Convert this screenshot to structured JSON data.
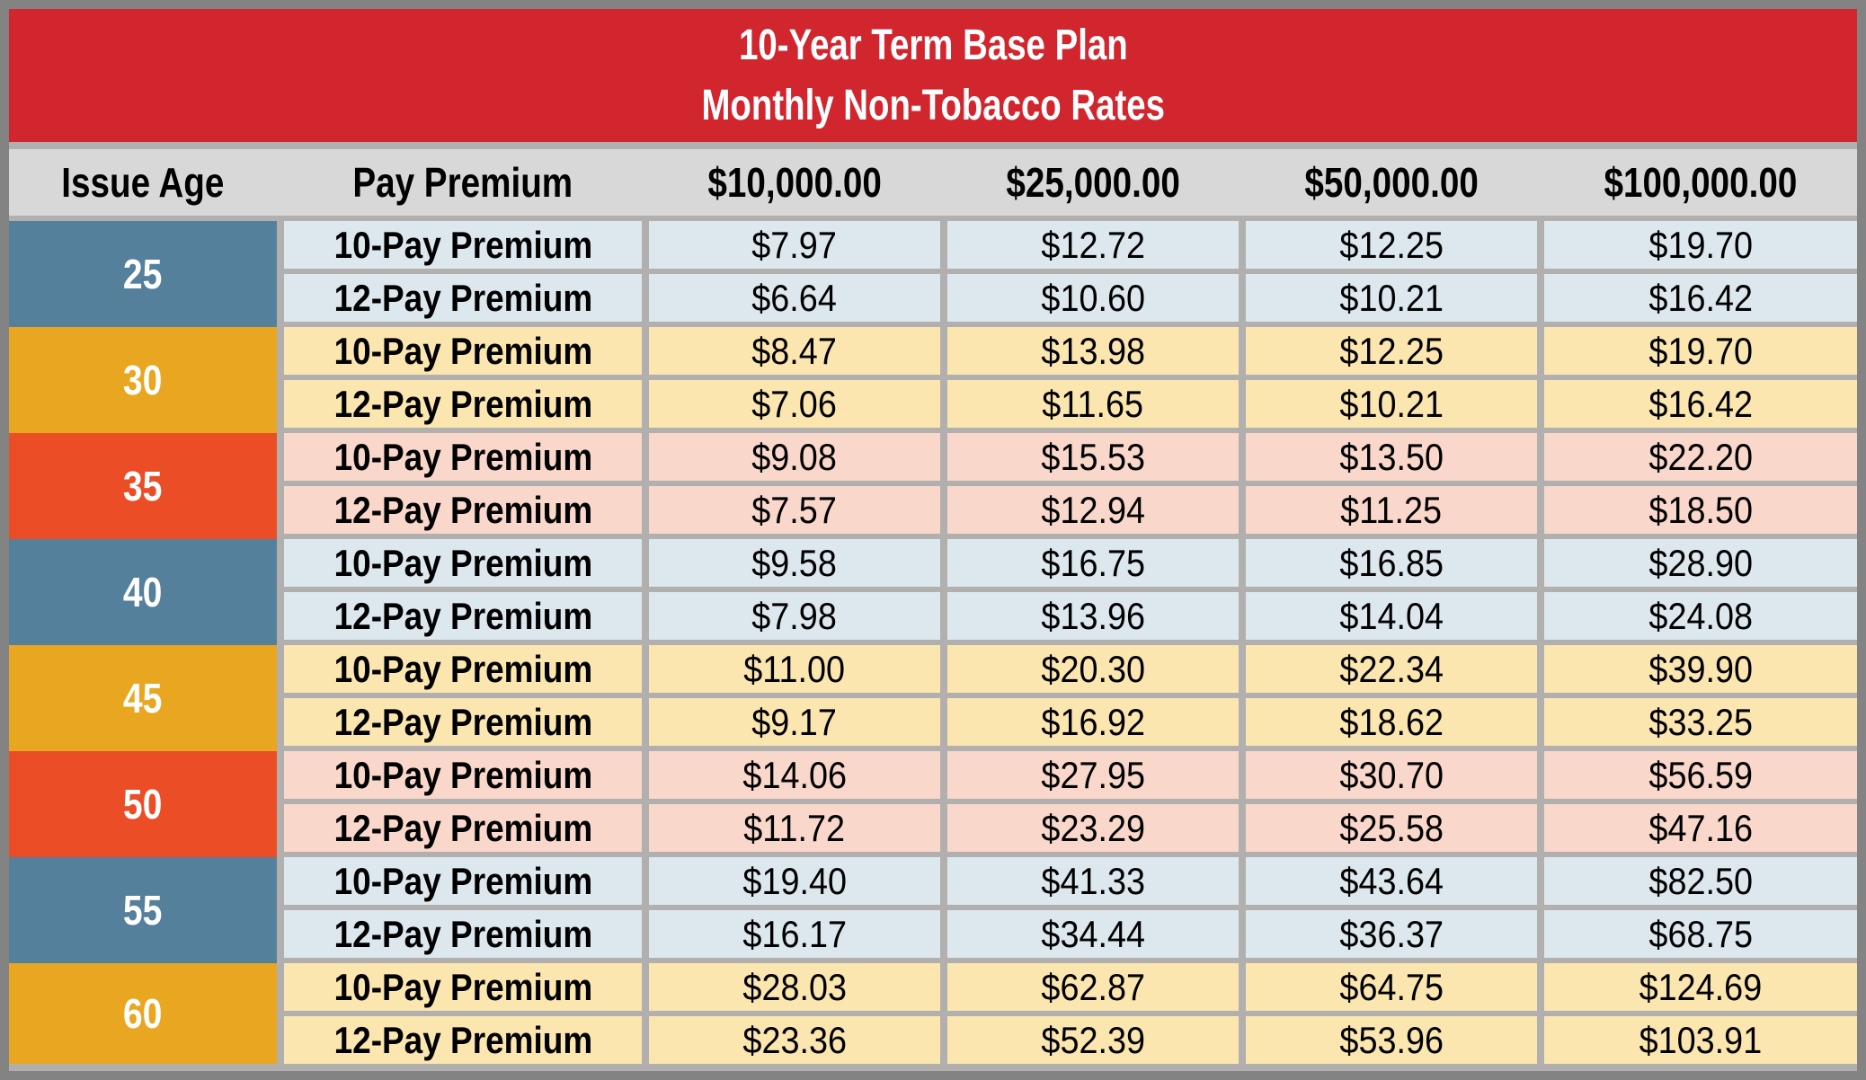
{
  "title": {
    "line1": "10-Year Term Base Plan",
    "line2": "Monthly Non-Tobacco Rates"
  },
  "header": {
    "columns": [
      "Issue Age",
      "Pay Premium",
      "$10,000.00",
      "$25,000.00",
      "$50,000.00",
      "$100,000.00"
    ]
  },
  "colors": {
    "title_band": "#d2262f",
    "header_bg": "#d8d8d8",
    "frame_border": "#838383",
    "cell_gap": "#b2afaf",
    "age_blue": "#54809b",
    "age_amber": "#e9a620",
    "age_red": "#eb4e26",
    "row_blue": "#dde8ee",
    "row_amber": "#fce6b0",
    "row_red": "#f9d7ca",
    "text_dark": "#000000",
    "text_light": "#ffffff"
  },
  "table": {
    "age_groups": [
      {
        "age": "25",
        "theme": "blue",
        "rows": [
          {
            "label": "10-Pay Premium",
            "values": [
              "$7.97",
              "$12.72",
              "$12.25",
              "$19.70"
            ]
          },
          {
            "label": "12-Pay Premium",
            "values": [
              "$6.64",
              "$10.60",
              "$10.21",
              "$16.42"
            ]
          }
        ]
      },
      {
        "age": "30",
        "theme": "amber",
        "rows": [
          {
            "label": "10-Pay Premium",
            "values": [
              "$8.47",
              "$13.98",
              "$12.25",
              "$19.70"
            ]
          },
          {
            "label": "12-Pay Premium",
            "values": [
              "$7.06",
              "$11.65",
              "$10.21",
              "$16.42"
            ]
          }
        ]
      },
      {
        "age": "35",
        "theme": "red",
        "rows": [
          {
            "label": "10-Pay Premium",
            "values": [
              "$9.08",
              "$15.53",
              "$13.50",
              "$22.20"
            ]
          },
          {
            "label": "12-Pay Premium",
            "values": [
              "$7.57",
              "$12.94",
              "$11.25",
              "$18.50"
            ]
          }
        ]
      },
      {
        "age": "40",
        "theme": "blue",
        "rows": [
          {
            "label": "10-Pay Premium",
            "values": [
              "$9.58",
              "$16.75",
              "$16.85",
              "$28.90"
            ]
          },
          {
            "label": "12-Pay Premium",
            "values": [
              "$7.98",
              "$13.96",
              "$14.04",
              "$24.08"
            ]
          }
        ]
      },
      {
        "age": "45",
        "theme": "amber",
        "rows": [
          {
            "label": "10-Pay Premium",
            "values": [
              "$11.00",
              "$20.30",
              "$22.34",
              "$39.90"
            ]
          },
          {
            "label": "12-Pay Premium",
            "values": [
              "$9.17",
              "$16.92",
              "$18.62",
              "$33.25"
            ]
          }
        ]
      },
      {
        "age": "50",
        "theme": "red",
        "rows": [
          {
            "label": "10-Pay Premium",
            "values": [
              "$14.06",
              "$27.95",
              "$30.70",
              "$56.59"
            ]
          },
          {
            "label": "12-Pay Premium",
            "values": [
              "$11.72",
              "$23.29",
              "$25.58",
              "$47.16"
            ]
          }
        ]
      },
      {
        "age": "55",
        "theme": "blue",
        "rows": [
          {
            "label": "10-Pay Premium",
            "values": [
              "$19.40",
              "$41.33",
              "$43.64",
              "$82.50"
            ]
          },
          {
            "label": "12-Pay Premium",
            "values": [
              "$16.17",
              "$34.44",
              "$36.37",
              "$68.75"
            ]
          }
        ]
      },
      {
        "age": "60",
        "theme": "amber",
        "rows": [
          {
            "label": "10-Pay Premium",
            "values": [
              "$28.03",
              "$62.87",
              "$64.75",
              "$124.69"
            ]
          },
          {
            "label": "12-Pay Premium",
            "values": [
              "$23.36",
              "$52.39",
              "$53.96",
              "$103.91"
            ]
          }
        ]
      }
    ]
  },
  "chart_data": {
    "type": "table",
    "title": "10-Year Term Base Plan",
    "subtitle": "Monthly Non-Tobacco Rates",
    "columns": [
      "Issue Age",
      "Pay Premium",
      "$10,000.00",
      "$25,000.00",
      "$50,000.00",
      "$100,000.00"
    ],
    "rows": [
      [
        25,
        "10-Pay Premium",
        7.97,
        12.72,
        12.25,
        19.7
      ],
      [
        25,
        "12-Pay Premium",
        6.64,
        10.6,
        10.21,
        16.42
      ],
      [
        30,
        "10-Pay Premium",
        8.47,
        13.98,
        12.25,
        19.7
      ],
      [
        30,
        "12-Pay Premium",
        7.06,
        11.65,
        10.21,
        16.42
      ],
      [
        35,
        "10-Pay Premium",
        9.08,
        15.53,
        13.5,
        22.2
      ],
      [
        35,
        "12-Pay Premium",
        7.57,
        12.94,
        11.25,
        18.5
      ],
      [
        40,
        "10-Pay Premium",
        9.58,
        16.75,
        16.85,
        28.9
      ],
      [
        40,
        "12-Pay Premium",
        7.98,
        13.96,
        14.04,
        24.08
      ],
      [
        45,
        "10-Pay Premium",
        11.0,
        20.3,
        22.34,
        39.9
      ],
      [
        45,
        "12-Pay Premium",
        9.17,
        16.92,
        18.62,
        33.25
      ],
      [
        50,
        "10-Pay Premium",
        14.06,
        27.95,
        30.7,
        56.59
      ],
      [
        50,
        "12-Pay Premium",
        11.72,
        23.29,
        25.58,
        47.16
      ],
      [
        55,
        "10-Pay Premium",
        19.4,
        41.33,
        43.64,
        82.5
      ],
      [
        55,
        "12-Pay Premium",
        16.17,
        34.44,
        36.37,
        68.75
      ],
      [
        60,
        "10-Pay Premium",
        28.03,
        62.87,
        64.75,
        124.69
      ],
      [
        60,
        "12-Pay Premium",
        23.36,
        52.39,
        53.96,
        103.91
      ]
    ]
  }
}
